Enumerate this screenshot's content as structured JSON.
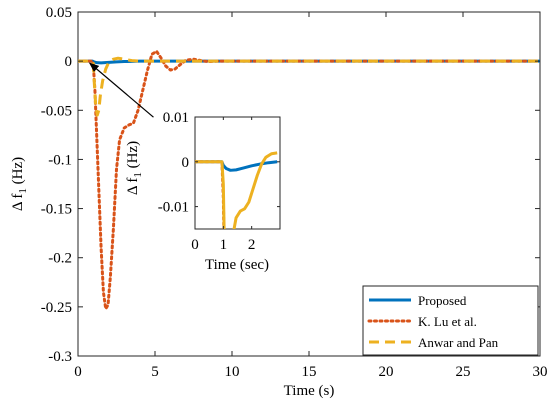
{
  "chart_data": [
    {
      "type": "line",
      "title": "",
      "xlabel": "Time (s)",
      "ylabel": "Δ f",
      "ylabel_subscript": "1",
      "ylabel_unit": " (Hz)",
      "xlim": [
        0,
        30
      ],
      "ylim": [
        -0.3,
        0.05
      ],
      "xticks": [
        0,
        5,
        10,
        15,
        20,
        25,
        30
      ],
      "yticks": [
        0.05,
        0,
        -0.05,
        -0.1,
        -0.15,
        -0.2,
        -0.25,
        -0.3
      ],
      "ytick_labels": [
        "0.05",
        "0",
        "-0.05",
        "-0.1",
        "-0.15",
        "-0.2",
        "-0.25",
        "-0.3"
      ],
      "grid": false,
      "legend_position": "bottom-right",
      "series": [
        {
          "name": "Proposed",
          "color": "#0072BD",
          "style": "solid",
          "x": [
            0,
            0.95,
            1.0,
            1.2,
            1.5,
            2.0,
            2.5,
            3.0,
            4.0,
            30
          ],
          "y": [
            0,
            0,
            -0.0005,
            -0.0015,
            -0.0018,
            -0.0012,
            -0.0008,
            -0.0004,
            0,
            0
          ]
        },
        {
          "name": "K. Lu et al.",
          "color": "#D95319",
          "style": "dotted",
          "x": [
            0,
            0.95,
            1.0,
            1.1,
            1.2,
            1.35,
            1.5,
            1.65,
            1.8,
            1.95,
            2.1,
            2.3,
            2.5,
            2.7,
            3.0,
            3.3,
            3.6,
            3.9,
            4.2,
            4.5,
            4.8,
            5.1,
            5.4,
            5.7,
            6.0,
            6.3,
            6.6,
            7.0,
            7.5,
            8.0,
            8.5,
            9.0,
            10,
            30
          ],
          "y": [
            0,
            0,
            -0.005,
            -0.03,
            -0.07,
            -0.13,
            -0.19,
            -0.235,
            -0.252,
            -0.248,
            -0.22,
            -0.17,
            -0.11,
            -0.08,
            -0.068,
            -0.065,
            -0.063,
            -0.05,
            -0.03,
            -0.01,
            0.007,
            0.01,
            0.003,
            -0.005,
            -0.009,
            -0.008,
            -0.004,
            0.001,
            0.002,
            0.0005,
            -0.0005,
            0,
            0,
            0
          ]
        },
        {
          "name": "Anwar and Pan",
          "color": "#EDB120",
          "style": "dashed",
          "x": [
            0,
            0.95,
            1.0,
            1.05,
            1.15,
            1.25,
            1.35,
            1.45,
            1.6,
            1.8,
            2.0,
            2.3,
            2.6,
            3.0,
            3.5,
            4.0,
            30
          ],
          "y": [
            0,
            0,
            -0.003,
            -0.02,
            -0.045,
            -0.055,
            -0.05,
            -0.035,
            -0.02,
            -0.008,
            -0.001,
            0.002,
            0.003,
            0.002,
            0.0005,
            0,
            0
          ]
        }
      ]
    },
    {
      "type": "line",
      "title": "",
      "xlabel": "Time (sec)",
      "ylabel": "Δ f",
      "ylabel_subscript": "1",
      "ylabel_unit": " (Hz)",
      "xlim": [
        0,
        3
      ],
      "ylim": [
        -0.015,
        0.01
      ],
      "xticks": [
        0,
        1,
        2
      ],
      "yticks": [
        0.01,
        0,
        -0.01
      ],
      "ytick_labels": [
        "0.01",
        "0",
        "-0.01"
      ],
      "grid": false,
      "legend_position": "none",
      "series": [
        {
          "name": "Proposed",
          "color": "#0072BD",
          "style": "solid",
          "x": [
            0,
            0.95,
            1.0,
            1.1,
            1.25,
            1.45,
            1.7,
            2.0,
            2.3,
            2.6,
            2.9
          ],
          "y": [
            0,
            0,
            -0.0008,
            -0.0015,
            -0.0019,
            -0.0018,
            -0.0014,
            -0.0009,
            -0.0005,
            -0.0002,
            0
          ]
        },
        {
          "name": "K. Lu et al.",
          "color": "#D95319",
          "style": "dotted",
          "x": [
            0,
            0.95,
            1.0,
            1.02
          ],
          "y": [
            0,
            0,
            -0.008,
            -0.016
          ]
        },
        {
          "name": "Anwar and Pan",
          "color": "#EDB120",
          "style": "solid",
          "x": [
            0,
            0.95,
            1.0,
            1.03,
            1.35,
            1.45,
            1.6,
            1.75,
            1.9,
            2.05,
            2.2,
            2.35,
            2.5,
            2.7,
            2.9
          ],
          "y": [
            0,
            0,
            -0.005,
            -0.016,
            -0.016,
            -0.0125,
            -0.011,
            -0.0105,
            -0.009,
            -0.006,
            -0.003,
            -0.0005,
            0.001,
            0.0018,
            0.002
          ]
        }
      ]
    }
  ],
  "annotation": {
    "arrow_from": [
      4.9,
      -0.057
    ],
    "arrow_to": [
      0.5,
      0.0
    ]
  }
}
